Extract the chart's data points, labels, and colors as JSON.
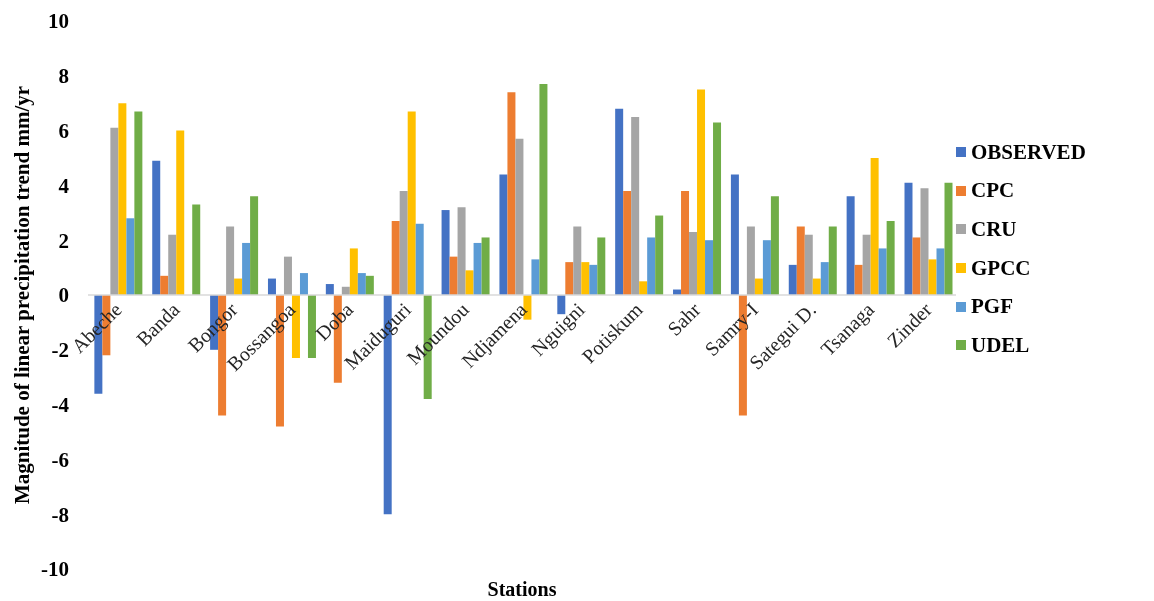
{
  "chart_data": {
    "type": "bar",
    "xlabel": "Stations",
    "ylabel": "Magnitude of linear precipitation trend mm/yr",
    "categories": [
      "Abeche",
      "Banda",
      "Bongor",
      "Bossangoa",
      "Doba",
      "Maiduguri",
      "Moundou",
      "Ndjamena",
      "Nguigni",
      "Potiskum",
      "Sahr",
      "Samry-I",
      "Sategui D.",
      "Tsanaga",
      "Zinder"
    ],
    "series": [
      {
        "name": "OBSERVED",
        "color": "#4472c4",
        "values": [
          -3.6,
          4.9,
          -2.0,
          0.6,
          0.4,
          -8.0,
          3.1,
          4.4,
          -0.7,
          6.8,
          0.2,
          4.4,
          1.1,
          3.6,
          4.1
        ]
      },
      {
        "name": "CPC",
        "color": "#ed7d31",
        "values": [
          -2.2,
          0.7,
          -4.4,
          -4.8,
          -3.2,
          2.7,
          1.4,
          7.4,
          1.2,
          3.8,
          3.8,
          -4.4,
          2.5,
          1.1,
          2.1
        ]
      },
      {
        "name": "CRU",
        "color": "#a5a5a5",
        "values": [
          6.1,
          2.2,
          2.5,
          1.4,
          0.3,
          3.8,
          3.2,
          5.7,
          2.5,
          6.5,
          2.3,
          2.5,
          2.2,
          2.2,
          3.9
        ]
      },
      {
        "name": "GPCC",
        "color": "#ffc000",
        "values": [
          7.0,
          6.0,
          0.6,
          -2.3,
          1.7,
          6.7,
          0.9,
          -0.9,
          1.2,
          0.5,
          7.5,
          0.6,
          0.6,
          5.0,
          1.3
        ]
      },
      {
        "name": "PGF",
        "color": "#5b9bd5",
        "values": [
          2.8,
          null,
          1.9,
          0.8,
          0.8,
          2.6,
          1.9,
          1.3,
          1.1,
          2.1,
          2.0,
          2.0,
          1.2,
          1.7,
          1.7
        ]
      },
      {
        "name": "UDEL",
        "color": "#70ad47",
        "values": [
          6.7,
          3.3,
          3.6,
          -2.3,
          0.7,
          -3.8,
          2.1,
          7.7,
          2.1,
          2.9,
          6.3,
          3.6,
          2.5,
          2.7,
          4.1
        ]
      }
    ],
    "ylim": [
      -10,
      10
    ],
    "yticks": [
      -10,
      -8,
      -6,
      -4,
      -2,
      0,
      2,
      4,
      6,
      8,
      10
    ],
    "legend": "right"
  }
}
